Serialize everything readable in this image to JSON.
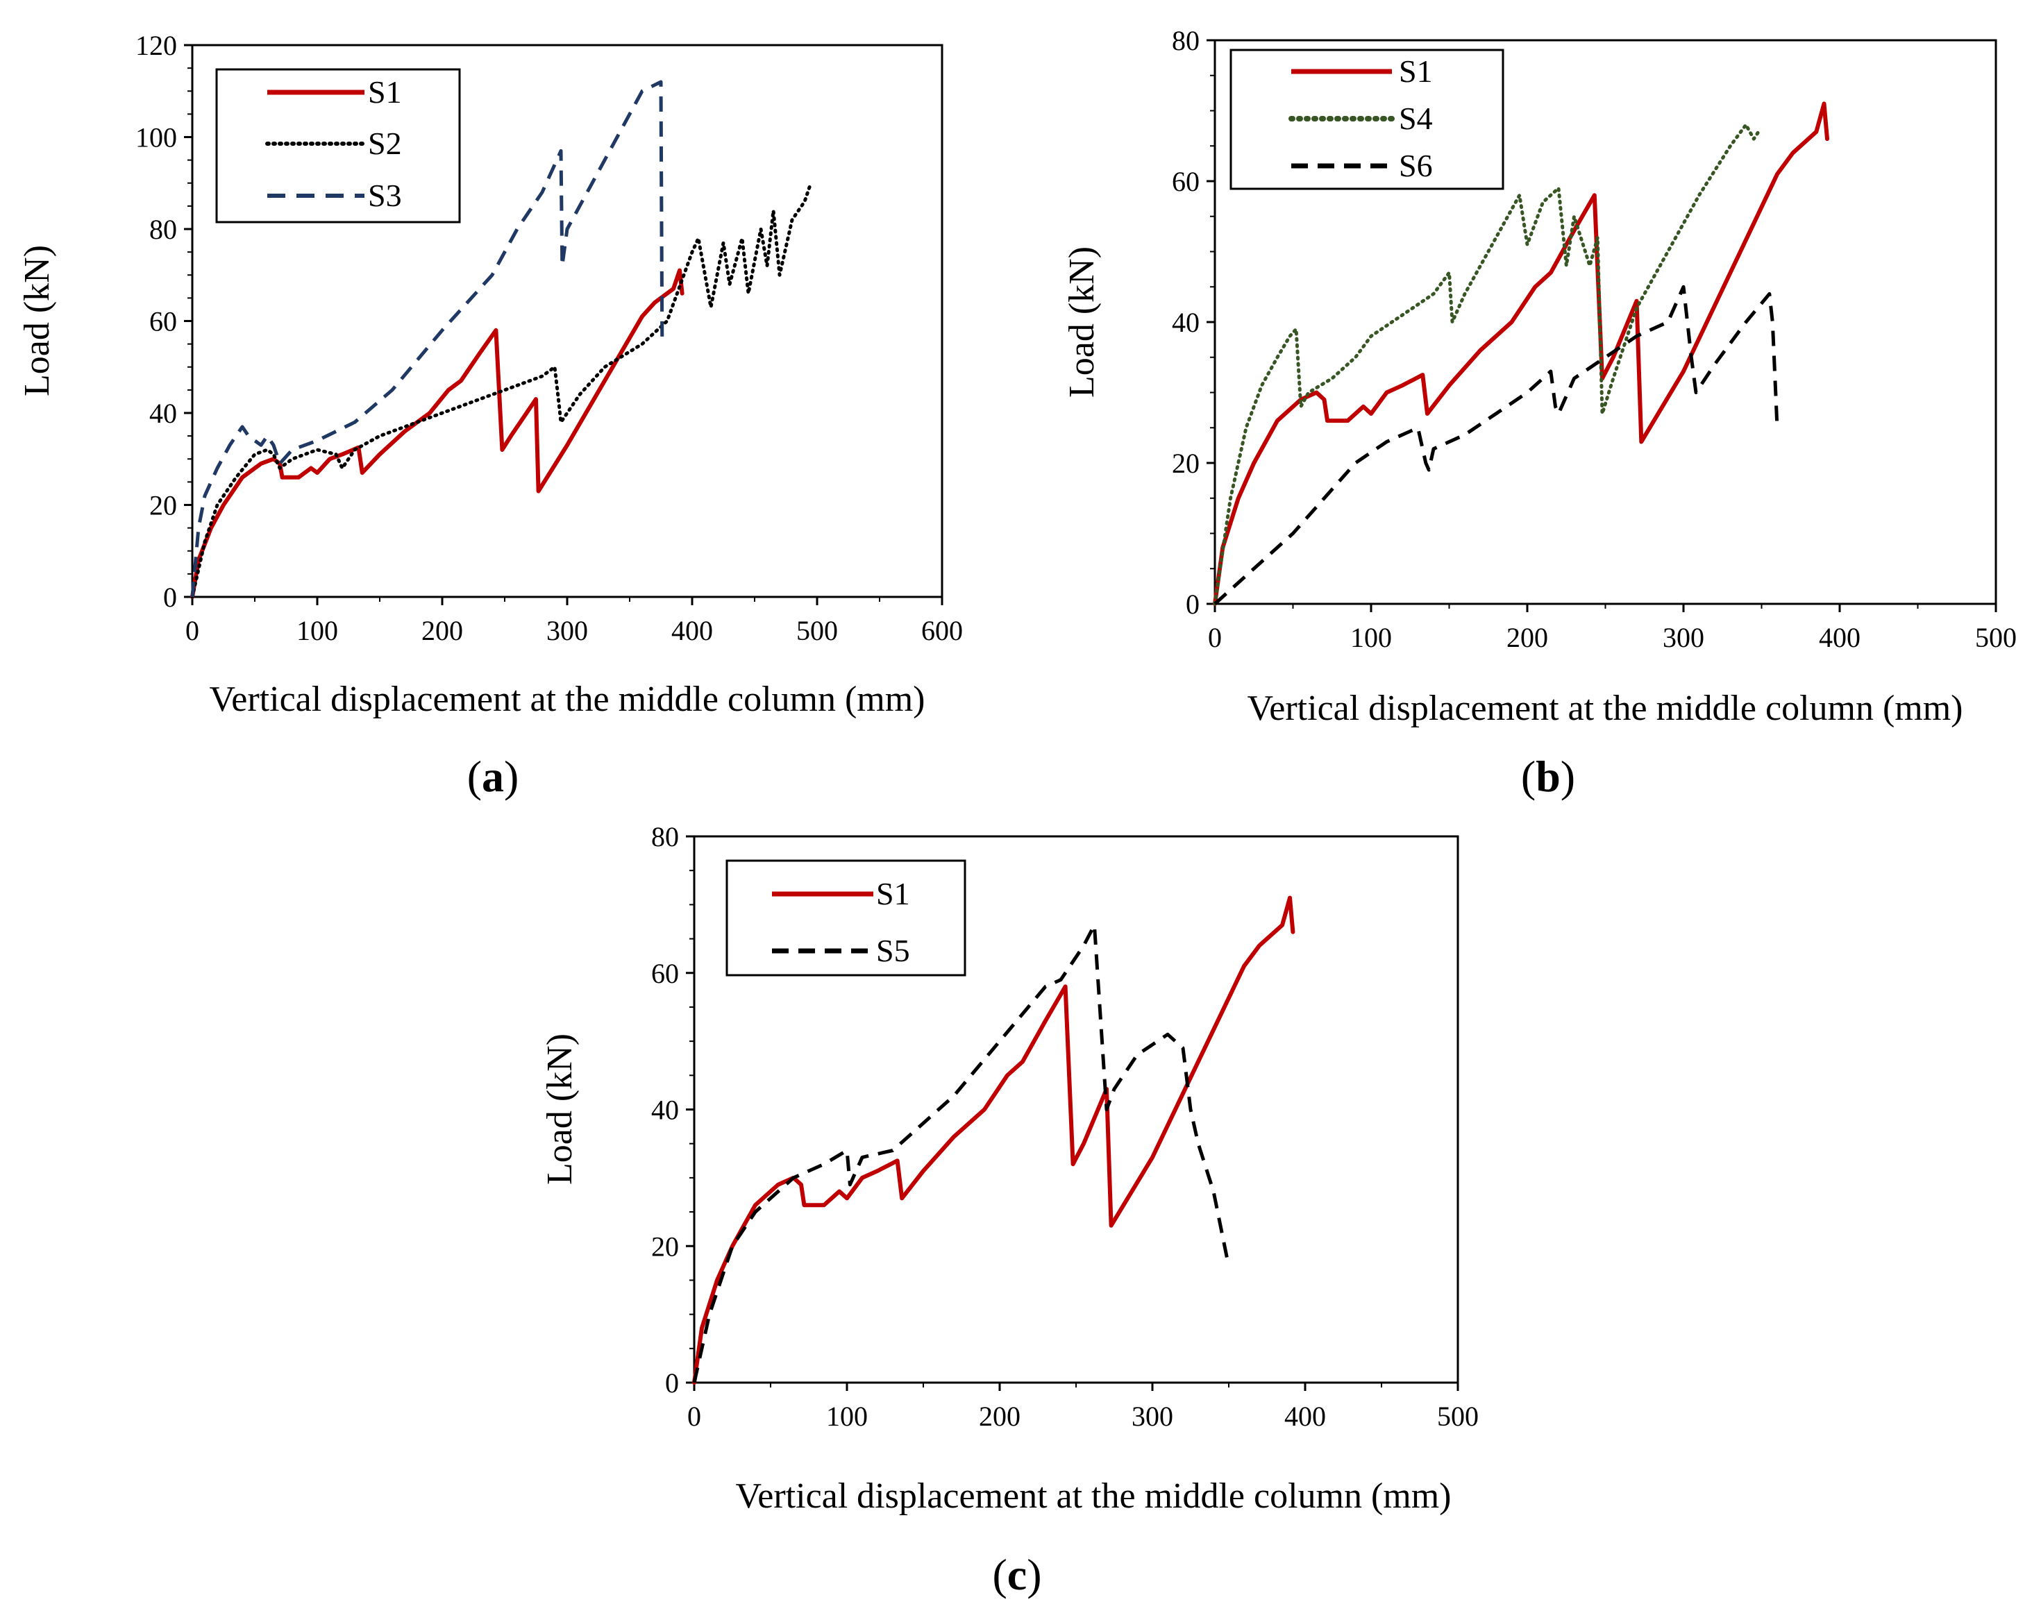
{
  "colors": {
    "S1": "#c00000",
    "S2": "#000000",
    "S3": "#1f3864",
    "S4": "#375623",
    "S5": "#000000",
    "S6": "#000000"
  },
  "chart_data": [
    {
      "type": "line",
      "panel_label": "a",
      "xlabel": "Vertical displacement at the middle column (mm)",
      "ylabel": "Load (kN)",
      "xlim": [
        0,
        600
      ],
      "ylim": [
        0,
        120
      ],
      "xticks": [
        0,
        100,
        200,
        300,
        400,
        500,
        600
      ],
      "yticks": [
        0,
        20,
        40,
        60,
        80,
        100,
        120
      ],
      "legend_position": "top-left",
      "series": [
        {
          "name": "S1",
          "style": "solid",
          "color": "#c00000",
          "x": [
            0,
            5,
            15,
            25,
            40,
            55,
            65,
            70,
            72,
            85,
            95,
            100,
            110,
            120,
            133,
            136,
            150,
            170,
            190,
            205,
            215,
            230,
            243,
            248,
            255,
            275,
            277,
            300,
            330,
            360,
            370,
            385,
            390,
            392
          ],
          "y": [
            0,
            8,
            15,
            20,
            26,
            29,
            30,
            29,
            26,
            26,
            28,
            27,
            30,
            31,
            32.5,
            27,
            31,
            36,
            40,
            45,
            47,
            53,
            58,
            32,
            35,
            43,
            23,
            33,
            47,
            61,
            64,
            67,
            71,
            66
          ]
        },
        {
          "name": "S2",
          "style": "dotted",
          "color": "#000000",
          "x": [
            0,
            10,
            20,
            35,
            50,
            60,
            65,
            70,
            80,
            100,
            115,
            120,
            130,
            150,
            180,
            200,
            220,
            240,
            260,
            280,
            290,
            293,
            295,
            310,
            330,
            360,
            380,
            400,
            405,
            415,
            425,
            430,
            440,
            445,
            455,
            460,
            465,
            470,
            480,
            490,
            495
          ],
          "y": [
            0,
            12,
            20,
            26,
            31,
            32,
            31,
            28,
            30,
            32,
            31,
            28,
            32,
            35,
            38,
            40,
            42,
            44,
            46,
            48,
            50,
            43,
            38,
            44,
            50,
            55,
            60,
            75,
            78,
            63,
            77,
            68,
            78,
            66,
            80,
            72,
            84,
            70,
            82,
            86,
            90
          ]
        },
        {
          "name": "S3",
          "style": "dashed",
          "color": "#1f3864",
          "x": [
            0,
            5,
            10,
            20,
            30,
            40,
            45,
            50,
            55,
            60,
            65,
            70,
            80,
            100,
            130,
            160,
            200,
            240,
            260,
            280,
            295,
            296,
            300,
            320,
            340,
            360,
            375,
            376
          ],
          "y": [
            0,
            15,
            22,
            28,
            33,
            37,
            35,
            34,
            33,
            35,
            33,
            29,
            32,
            34,
            38,
            45,
            58,
            70,
            80,
            88,
            97,
            72,
            80,
            90,
            100,
            110,
            112,
            55
          ]
        }
      ]
    },
    {
      "type": "line",
      "panel_label": "b",
      "xlabel": "Vertical displacement at the middle column (mm)",
      "ylabel": "Load (kN)",
      "xlim": [
        0,
        500
      ],
      "ylim": [
        0,
        80
      ],
      "xticks": [
        0,
        100,
        200,
        300,
        400,
        500
      ],
      "yticks": [
        0,
        20,
        40,
        60,
        80
      ],
      "legend_position": "top-left",
      "series": [
        {
          "name": "S1",
          "style": "solid",
          "color": "#c00000",
          "x": [
            0,
            5,
            15,
            25,
            40,
            55,
            65,
            70,
            72,
            85,
            95,
            100,
            110,
            120,
            133,
            136,
            150,
            170,
            190,
            205,
            215,
            230,
            243,
            248,
            255,
            270,
            273,
            300,
            330,
            360,
            370,
            385,
            390,
            392
          ],
          "y": [
            0,
            8,
            15,
            20,
            26,
            29,
            30,
            29,
            26,
            26,
            28,
            27,
            30,
            31,
            32.5,
            27,
            31,
            36,
            40,
            45,
            47,
            53,
            58,
            32,
            35,
            43,
            23,
            33,
            47,
            61,
            64,
            67,
            71,
            66
          ]
        },
        {
          "name": "S4",
          "style": "dotted",
          "color": "#375623",
          "x": [
            0,
            10,
            20,
            30,
            40,
            48,
            52,
            55,
            60,
            75,
            90,
            100,
            120,
            140,
            150,
            152,
            160,
            175,
            190,
            195,
            200,
            210,
            220,
            225,
            230,
            240,
            245,
            248,
            255,
            270,
            290,
            310,
            330,
            340,
            345,
            348
          ],
          "y": [
            0,
            15,
            25,
            31,
            35,
            38,
            39,
            28,
            30,
            32,
            35,
            38,
            41,
            44,
            47,
            40,
            44,
            50,
            56,
            58,
            51,
            57,
            59,
            48,
            55,
            48,
            52,
            27,
            32,
            42,
            50,
            58,
            65,
            68,
            66,
            67
          ]
        },
        {
          "name": "S6",
          "style": "dashed",
          "color": "#000000",
          "x": [
            0,
            10,
            30,
            50,
            70,
            90,
            110,
            130,
            135,
            137,
            140,
            160,
            180,
            200,
            215,
            218,
            220,
            230,
            250,
            270,
            290,
            300,
            305,
            308,
            320,
            340,
            355,
            357,
            360
          ],
          "y": [
            0,
            2,
            6,
            10,
            15,
            20,
            23,
            25,
            20,
            19,
            22,
            24,
            27,
            30,
            33,
            28,
            27,
            32,
            35,
            38,
            40,
            45,
            35,
            30,
            34,
            40,
            44,
            40,
            25
          ]
        }
      ]
    },
    {
      "type": "line",
      "panel_label": "c",
      "xlabel": "Vertical displacement at the middle column (mm)",
      "ylabel": "Load (kN)",
      "xlim": [
        0,
        500
      ],
      "ylim": [
        0,
        80
      ],
      "xticks": [
        0,
        100,
        200,
        300,
        400,
        500
      ],
      "yticks": [
        0,
        20,
        40,
        60,
        80
      ],
      "legend_position": "top-left",
      "series": [
        {
          "name": "S1",
          "style": "solid",
          "color": "#c00000",
          "x": [
            0,
            5,
            15,
            25,
            40,
            55,
            65,
            70,
            72,
            85,
            95,
            100,
            110,
            120,
            133,
            136,
            150,
            170,
            190,
            205,
            215,
            230,
            243,
            248,
            255,
            270,
            273,
            300,
            330,
            360,
            370,
            385,
            390,
            392
          ],
          "y": [
            0,
            8,
            15,
            20,
            26,
            29,
            30,
            29,
            26,
            26,
            28,
            27,
            30,
            31,
            32.5,
            27,
            31,
            36,
            40,
            45,
            47,
            53,
            58,
            32,
            35,
            43,
            23,
            33,
            47,
            61,
            64,
            67,
            71,
            66
          ]
        },
        {
          "name": "S5",
          "style": "dashed",
          "color": "#000000",
          "x": [
            0,
            10,
            25,
            40,
            55,
            65,
            75,
            85,
            100,
            102,
            110,
            130,
            150,
            170,
            200,
            230,
            240,
            255,
            262,
            270,
            275,
            290,
            310,
            320,
            325,
            330,
            340,
            350
          ],
          "y": [
            0,
            10,
            20,
            25,
            28,
            30,
            31,
            32,
            34,
            29,
            33,
            34,
            38,
            42,
            50,
            58,
            59,
            64,
            67,
            40,
            43,
            48,
            51,
            49,
            40,
            35,
            28,
            17
          ]
        }
      ]
    }
  ]
}
